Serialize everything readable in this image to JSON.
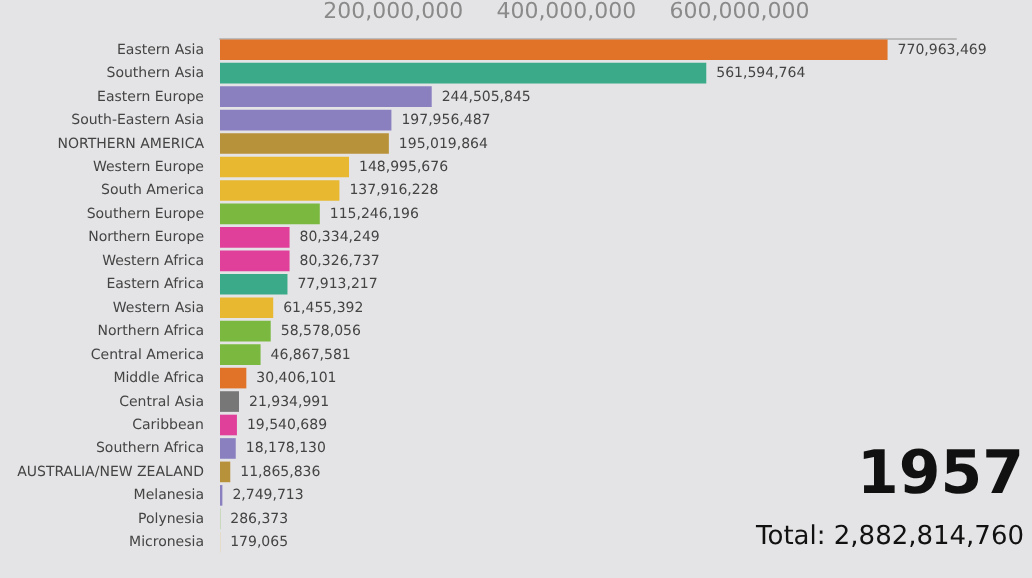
{
  "chart_data": {
    "type": "bar",
    "orientation": "horizontal",
    "title": "1957",
    "annotations": [
      "Total: 2,882,814,760"
    ],
    "categories": [
      "Eastern Asia",
      "Southern Asia",
      "Eastern Europe",
      "South-Eastern Asia",
      "NORTHERN AMERICA",
      "Western Europe",
      "South America",
      "Southern Europe",
      "Northern Europe",
      "Western Africa",
      "Eastern Africa",
      "Western Asia",
      "Northern Africa",
      "Central America",
      "Middle Africa",
      "Central Asia",
      "Caribbean",
      "Southern Africa",
      "AUSTRALIA/NEW ZEALAND",
      "Melanesia",
      "Polynesia",
      "Micronesia"
    ],
    "values": [
      770963469,
      561594764,
      244505845,
      197956487,
      195019864,
      148995676,
      137916228,
      115246196,
      80334249,
      80326737,
      77913217,
      61455392,
      58578056,
      46867581,
      30406101,
      21934991,
      19540689,
      18178130,
      11865836,
      2749713,
      286373,
      179065
    ],
    "value_labels": [
      "770,963,469",
      "561,594,764",
      "244,505,845",
      "197,956,487",
      "195,019,864",
      "148,995,676",
      "137,916,228",
      "115,246,196",
      "80,334,249",
      "80,326,737",
      "77,913,217",
      "61,455,392",
      "58,578,056",
      "46,867,581",
      "30,406,101",
      "21,934,991",
      "19,540,689",
      "18,178,130",
      "11,865,836",
      "2,749,713",
      "286,373",
      "179,065"
    ],
    "colors": [
      "#e07328",
      "#3aaa88",
      "#8a80c0",
      "#8a80c0",
      "#b8923a",
      "#e8b830",
      "#e8b830",
      "#7ab840",
      "#e0409a",
      "#e0409a",
      "#3aaa88",
      "#e8b830",
      "#7ab840",
      "#7ab840",
      "#e07328",
      "#777777",
      "#e0409a",
      "#8a80c0",
      "#b8923a",
      "#8a80c0",
      "#7ab840",
      "#e8b830"
    ],
    "xlim": [
      0,
      850000000
    ],
    "xticks": [
      {
        "value": 200000000,
        "label": "200,000,000"
      },
      {
        "value": 400000000,
        "label": "400,000,000"
      },
      {
        "value": 600000000,
        "label": "600,000,000"
      }
    ],
    "grid": false
  }
}
